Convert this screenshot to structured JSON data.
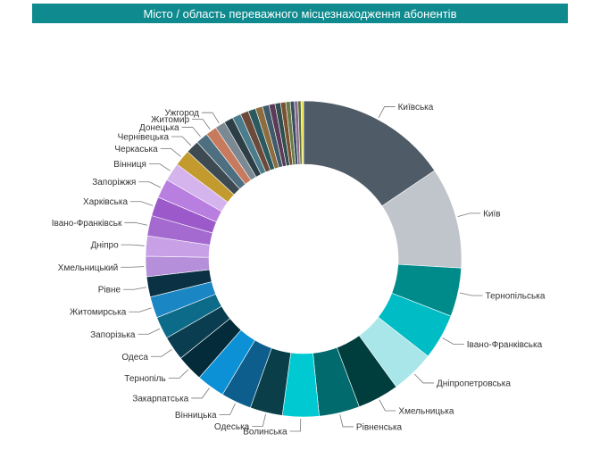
{
  "chart_data": {
    "type": "pie",
    "title": "Місто / область переважного місцезнаходження абонентів",
    "categories": [
      "Київська",
      "Київ",
      "Тернопільська",
      "Івано-Франківська",
      "Дніпропетровська",
      "Хмельницька",
      "Рівненська",
      "Волинська",
      "Одеська",
      "Вінницька",
      "Закарпатська",
      "Тернопіль",
      "Одеса",
      "Запорізька",
      "Житомирська",
      "Рівне",
      "Хмельницький",
      "Дніпро",
      "Івано-Франківськ",
      "Харківська",
      "Запоріжжя",
      "Вінниця",
      "Черкаська",
      "Чернівецька",
      "Донецька",
      "Житомир",
      "Ужгород",
      "",
      "",
      "",
      "",
      "",
      "",
      "",
      "",
      "",
      "",
      "",
      "",
      "",
      ""
    ],
    "values": [
      15.0,
      10.0,
      4.8,
      4.5,
      4.3,
      4.1,
      4.0,
      3.6,
      3.2,
      3.0,
      2.8,
      2.6,
      2.4,
      2.2,
      2.1,
      2.0,
      2.0,
      2.0,
      2.0,
      1.9,
      1.9,
      1.8,
      1.6,
      1.3,
      1.2,
      1.1,
      1.0,
      0.9,
      0.85,
      0.8,
      0.75,
      0.7,
      0.65,
      0.6,
      0.55,
      0.5,
      0.45,
      0.4,
      0.35,
      0.3,
      0.25
    ],
    "colors": [
      "#4f5b66",
      "#c0c5cb",
      "#008b8b",
      "#00bcc4",
      "#a9e6ea",
      "#003d3d",
      "#006a6d",
      "#00c9d1",
      "#0a3f4a",
      "#0d5e8c",
      "#0c91d6",
      "#032b3a",
      "#0a3d50",
      "#0d6b8a",
      "#1a86c4",
      "#0b3144",
      "#b58fd9",
      "#c8a0e6",
      "#a46ad0",
      "#9c59c9",
      "#b97fe0",
      "#d5b4ee",
      "#c29a2e",
      "#3d4a52",
      "#4e6f80",
      "#c77a5d",
      "#7b8a92",
      "#2d3e47",
      "#4b7c8c",
      "#6b4a3a",
      "#2a5a5f",
      "#8c6d3f",
      "#3f5a6a",
      "#5c3b59",
      "#2f4f4f",
      "#7a5230",
      "#6a7c4a",
      "#3b4d61",
      "#8d6d8f",
      "#5d6d3d",
      "#e8e04a"
    ],
    "legend": "none"
  }
}
